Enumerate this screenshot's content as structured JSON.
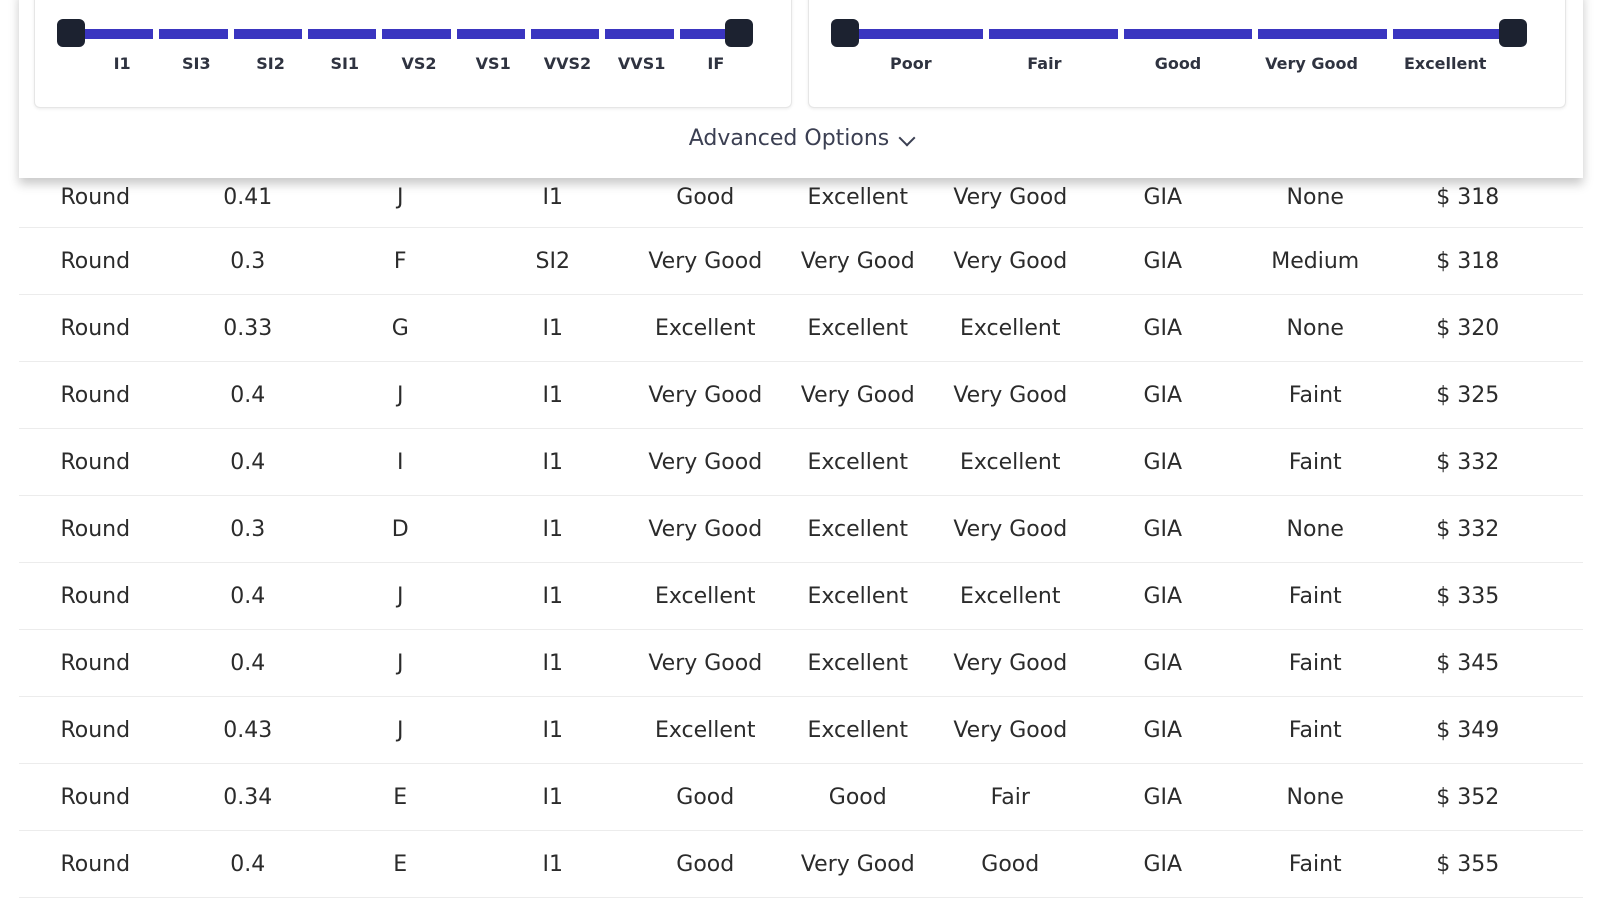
{
  "clarity_filter": {
    "ticks": [
      "I1",
      "SI3",
      "SI2",
      "SI1",
      "VS2",
      "VS1",
      "VVS2",
      "VVS1",
      "IF"
    ]
  },
  "cut_filter": {
    "ticks": [
      "Poor",
      "Fair",
      "Good",
      "Very Good",
      "Excellent"
    ]
  },
  "advanced_options_label": "Advanced Options",
  "rows": [
    [
      "Round",
      "0.41",
      "J",
      "I1",
      "Good",
      "Excellent",
      "Very Good",
      "GIA",
      "None",
      "$ 318"
    ],
    [
      "Round",
      "0.3",
      "F",
      "SI2",
      "Very Good",
      "Very Good",
      "Very Good",
      "GIA",
      "Medium",
      "$ 318"
    ],
    [
      "Round",
      "0.33",
      "G",
      "I1",
      "Excellent",
      "Excellent",
      "Excellent",
      "GIA",
      "None",
      "$ 320"
    ],
    [
      "Round",
      "0.4",
      "J",
      "I1",
      "Very Good",
      "Very Good",
      "Very Good",
      "GIA",
      "Faint",
      "$ 325"
    ],
    [
      "Round",
      "0.4",
      "I",
      "I1",
      "Very Good",
      "Excellent",
      "Excellent",
      "GIA",
      "Faint",
      "$ 332"
    ],
    [
      "Round",
      "0.3",
      "D",
      "I1",
      "Very Good",
      "Excellent",
      "Very Good",
      "GIA",
      "None",
      "$ 332"
    ],
    [
      "Round",
      "0.4",
      "J",
      "I1",
      "Excellent",
      "Excellent",
      "Excellent",
      "GIA",
      "Faint",
      "$ 335"
    ],
    [
      "Round",
      "0.4",
      "J",
      "I1",
      "Very Good",
      "Excellent",
      "Very Good",
      "GIA",
      "Faint",
      "$ 345"
    ],
    [
      "Round",
      "0.43",
      "J",
      "I1",
      "Excellent",
      "Excellent",
      "Very Good",
      "GIA",
      "Faint",
      "$ 349"
    ],
    [
      "Round",
      "0.34",
      "E",
      "I1",
      "Good",
      "Good",
      "Fair",
      "GIA",
      "None",
      "$ 352"
    ],
    [
      "Round",
      "0.4",
      "E",
      "I1",
      "Good",
      "Very Good",
      "Good",
      "GIA",
      "Faint",
      "$ 355"
    ]
  ],
  "colors": {
    "slider_track": "#3a35c0",
    "slider_handle": "#1c2230"
  }
}
